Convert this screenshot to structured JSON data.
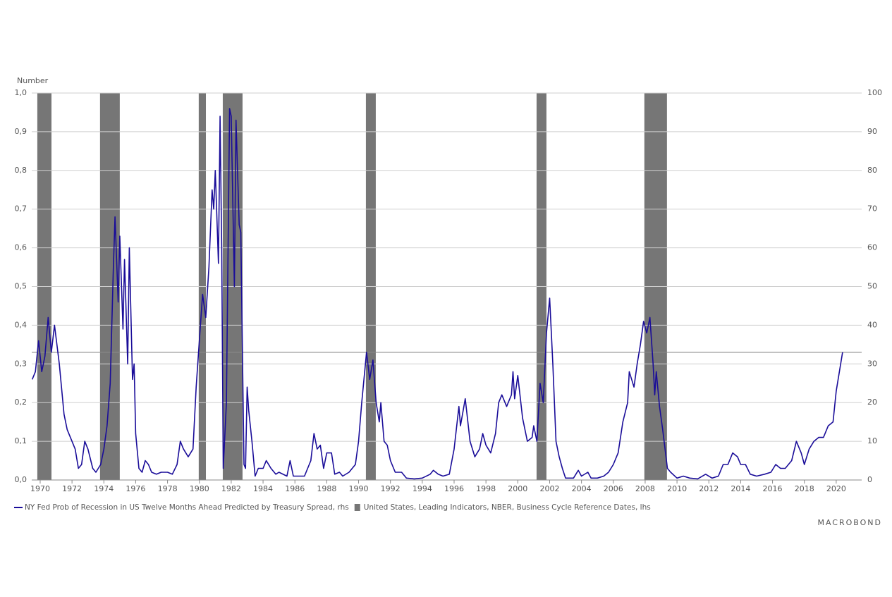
{
  "chart_data": {
    "type": "line",
    "y_axis_label": "Number",
    "xlim": [
      1969.47,
      2021.6
    ],
    "xticks": [
      1970,
      1972,
      1974,
      1976,
      1978,
      1980,
      1982,
      1984,
      1986,
      1988,
      1990,
      1992,
      1994,
      1996,
      1998,
      2000,
      2002,
      2004,
      2006,
      2008,
      2010,
      2012,
      2014,
      2016,
      2018,
      2020
    ],
    "ylim": [
      0,
      1
    ],
    "yticks": [
      {
        "value": 0,
        "label": "0,0"
      },
      {
        "value": 0.1,
        "label": "0,1"
      },
      {
        "value": 0.2,
        "label": "0,2"
      },
      {
        "value": 0.3,
        "label": "0,3"
      },
      {
        "value": 0.4,
        "label": "0,4"
      },
      {
        "value": 0.5,
        "label": "0,5"
      },
      {
        "value": 0.6,
        "label": "0,6"
      },
      {
        "value": 0.7,
        "label": "0,7"
      },
      {
        "value": 0.8,
        "label": "0,8"
      },
      {
        "value": 0.9,
        "label": "0,9"
      },
      {
        "value": 1,
        "label": "1,0"
      }
    ],
    "y2lim": [
      0,
      100
    ],
    "y2ticks": [
      0,
      10,
      20,
      30,
      40,
      50,
      60,
      70,
      80,
      90,
      100
    ],
    "grid": true,
    "reference_lines": [
      {
        "axis": "y2",
        "value": 33,
        "color": "#8a8a8a"
      }
    ],
    "series": [
      {
        "name": "NY Fed Prob of Recession in US Twelve Months Ahead Predicted by Treasury Spread, rhs",
        "color": "#1a0d99",
        "axis": "y2",
        "x": [
          1969.5,
          1969.7,
          1969.9,
          1970.1,
          1970.3,
          1970.5,
          1970.7,
          1970.9,
          1971.2,
          1971.5,
          1971.7,
          1972.0,
          1972.2,
          1972.4,
          1972.6,
          1972.8,
          1973.0,
          1973.3,
          1973.5,
          1973.8,
          1974.0,
          1974.2,
          1974.4,
          1974.6,
          1974.7,
          1974.9,
          1975.0,
          1975.2,
          1975.3,
          1975.5,
          1975.6,
          1975.8,
          1975.9,
          1976.0,
          1976.2,
          1976.4,
          1976.6,
          1976.8,
          1977.0,
          1977.3,
          1977.6,
          1978.0,
          1978.3,
          1978.6,
          1978.8,
          1979.0,
          1979.3,
          1979.6,
          1979.8,
          1980.0,
          1980.2,
          1980.4,
          1980.6,
          1980.8,
          1980.9,
          1981.0,
          1981.2,
          1981.3,
          1981.4,
          1981.5,
          1981.7,
          1981.9,
          1982.0,
          1982.2,
          1982.3,
          1982.5,
          1982.6,
          1982.8,
          1982.9,
          1983.0,
          1983.1,
          1983.3,
          1983.5,
          1983.7,
          1984.0,
          1984.2,
          1984.5,
          1984.8,
          1985.0,
          1985.5,
          1985.7,
          1985.9,
          1986.2,
          1986.6,
          1987.0,
          1987.2,
          1987.4,
          1987.6,
          1987.8,
          1988.0,
          1988.3,
          1988.5,
          1988.8,
          1989.0,
          1989.4,
          1989.8,
          1990.0,
          1990.2,
          1990.5,
          1990.7,
          1990.9,
          1991.1,
          1991.3,
          1991.4,
          1991.6,
          1991.8,
          1992.0,
          1992.3,
          1992.7,
          1993.0,
          1993.5,
          1994.0,
          1994.5,
          1994.7,
          1995.0,
          1995.3,
          1995.7,
          1996.0,
          1996.3,
          1996.4,
          1996.7,
          1997.0,
          1997.3,
          1997.6,
          1997.8,
          1998.0,
          1998.3,
          1998.6,
          1998.8,
          1999.0,
          1999.3,
          1999.6,
          1999.7,
          1999.8,
          2000.0,
          2000.3,
          2000.6,
          2000.9,
          2001.0,
          2001.2,
          2001.4,
          2001.6,
          2001.8,
          2002.0,
          2002.2,
          2002.4,
          2002.6,
          2002.8,
          2003.0,
          2003.5,
          2003.8,
          2004.0,
          2004.4,
          2004.6,
          2005.0,
          2005.4,
          2005.7,
          2006.0,
          2006.3,
          2006.6,
          2006.9,
          2007.0,
          2007.3,
          2007.5,
          2007.7,
          2007.9,
          2008.1,
          2008.3,
          2008.5,
          2008.6,
          2008.7,
          2008.9,
          2009.1,
          2009.4,
          2009.6,
          2010.0,
          2010.4,
          2010.8,
          2011.3,
          2011.8,
          2012.2,
          2012.6,
          2012.9,
          2013.2,
          2013.5,
          2013.8,
          2014.0,
          2014.3,
          2014.6,
          2015.0,
          2015.5,
          2015.9,
          2016.2,
          2016.5,
          2016.8,
          2017.2,
          2017.5,
          2017.8,
          2018.0,
          2018.3,
          2018.6,
          2018.9,
          2019.2,
          2019.5,
          2019.8,
          2020.0,
          2020.2,
          2020.4
        ],
        "values": [
          26,
          28,
          36,
          28,
          32,
          42,
          33,
          40,
          30,
          17,
          13,
          10,
          8,
          3,
          4,
          10,
          8,
          3,
          2,
          4,
          8,
          14,
          25,
          55,
          68,
          46,
          63,
          39,
          57,
          30,
          60,
          26,
          30,
          12,
          3,
          2,
          5,
          4,
          2,
          1.5,
          2,
          2,
          1.5,
          4,
          10,
          8,
          6,
          8,
          24,
          36,
          48,
          42,
          55,
          75,
          70,
          80,
          56,
          94,
          60,
          3,
          20,
          96,
          94,
          50,
          93,
          66,
          64,
          4,
          3,
          24,
          18,
          10,
          1,
          3,
          3,
          5,
          3,
          1.5,
          2,
          1,
          5,
          1,
          1,
          1,
          5,
          12,
          8,
          9,
          3,
          7,
          7,
          1.5,
          2,
          1,
          2,
          4,
          10,
          20,
          33,
          26,
          31,
          20,
          15,
          20,
          10,
          9,
          5,
          2,
          2,
          0.5,
          0.3,
          0.5,
          1.5,
          2.5,
          1.5,
          1,
          1.5,
          8,
          19,
          14,
          21,
          10,
          6,
          8,
          12,
          9,
          7,
          12,
          20,
          22,
          19,
          22,
          28,
          21,
          27,
          16,
          10,
          11,
          14,
          10,
          25,
          20,
          38,
          47,
          30,
          10,
          6,
          3,
          0.5,
          0.5,
          2.5,
          1,
          2,
          0.5,
          0.5,
          1,
          2,
          4,
          7,
          15,
          20,
          28,
          24,
          30,
          35,
          41,
          38,
          42,
          30,
          22,
          28,
          19,
          13,
          3,
          2,
          0.5,
          1,
          0.5,
          0.3,
          1.5,
          0.5,
          1,
          4,
          4,
          7,
          6,
          4,
          4,
          1.5,
          1,
          1.5,
          2,
          4,
          3,
          3,
          5,
          10,
          7,
          4,
          8,
          10,
          11,
          11,
          14,
          15,
          23,
          28,
          33
        ]
      },
      {
        "name": "United States, Leading Indicators, NBER, Business Cycle Reference Dates, lhs",
        "color": "#767676",
        "axis": "y",
        "value": 1,
        "periods": [
          [
            1969.82,
            1970.71
          ],
          [
            1973.76,
            1975.0
          ],
          [
            1979.96,
            1980.41
          ],
          [
            1981.47,
            1982.71
          ],
          [
            1990.46,
            1991.08
          ],
          [
            2001.18,
            2001.8
          ],
          [
            2007.95,
            2009.37
          ]
        ]
      }
    ],
    "source_logo": "MACROBOND"
  }
}
